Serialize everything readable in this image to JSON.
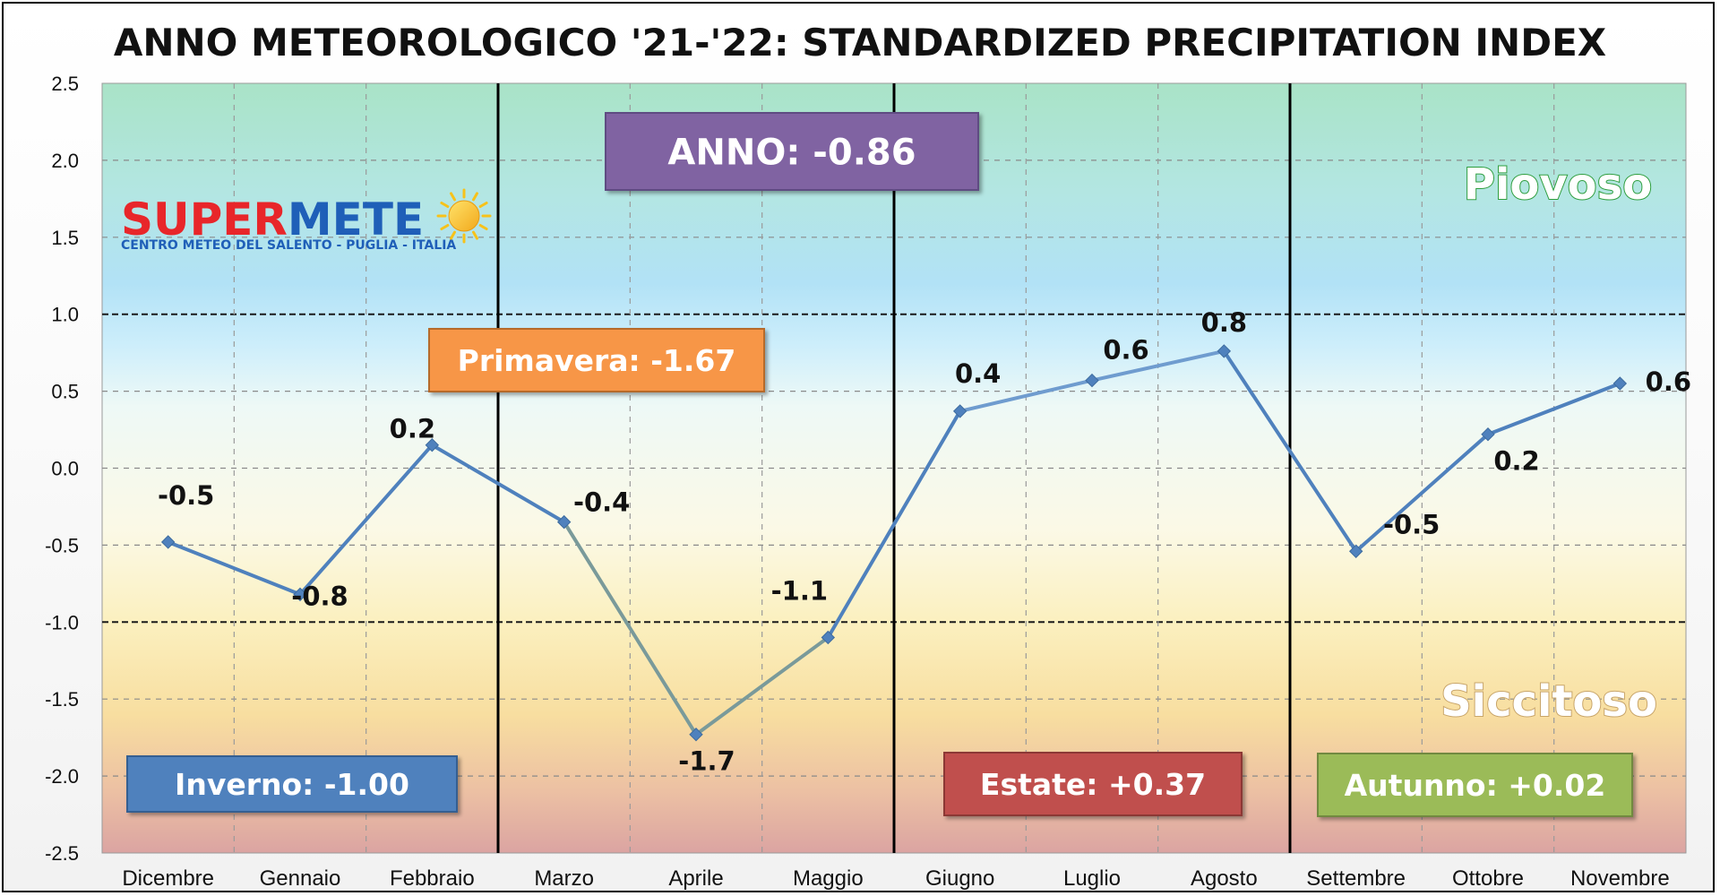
{
  "chart_data": {
    "type": "line",
    "title": "ANNO METEOROLOGICO '21-'22: STANDARDIZED PRECIPITATION INDEX",
    "categories": [
      "Dicembre",
      "Gennaio",
      "Febbraio",
      "Marzo",
      "Aprile",
      "Maggio",
      "Giugno",
      "Luglio",
      "Agosto",
      "Settembre",
      "Ottobre",
      "Novembre"
    ],
    "values": [
      -0.48,
      -0.82,
      0.15,
      -0.35,
      -1.73,
      -1.1,
      0.37,
      0.57,
      0.76,
      -0.54,
      0.22,
      0.55
    ],
    "data_labels": [
      "-0.5",
      "-0.8",
      "0.2",
      "-0.4",
      "-1.7",
      "-1.1",
      "0.4",
      "0.6",
      "0.8",
      "-0.5",
      "0.2",
      "0.6"
    ],
    "ylim": [
      -2.5,
      2.5
    ],
    "yticks": [
      "2.5",
      "2.0",
      "1.5",
      "1.0",
      "0.5",
      "0.0",
      "-0.5",
      "-1.0",
      "-1.5",
      "-2.0",
      "-2.5"
    ],
    "ytick_values": [
      2.5,
      2.0,
      1.5,
      1.0,
      0.5,
      0.0,
      -0.5,
      -1.0,
      -1.5,
      -2.0,
      -2.5
    ],
    "threshold_lines": [
      1.0,
      -1.0
    ],
    "season_dividers_after": [
      "Febbraio",
      "Maggio",
      "Agosto"
    ],
    "grid": true,
    "line_color": "#4f81bd",
    "zones": {
      "wet_label": "Piovoso",
      "dry_label": "Siccitoso",
      "wet_color": "#2e9e3e",
      "dry_color": "#c8a56a"
    },
    "annotations": [
      {
        "id": "anno",
        "text": "ANNO: -0.86",
        "color": "#8064a2",
        "border": "#5f4b82"
      },
      {
        "id": "primavera",
        "text": "Primavera: -1.67",
        "color": "#f79646",
        "border": "#b66a2a"
      },
      {
        "id": "inverno",
        "text": "Inverno: -1.00",
        "color": "#4f81bd",
        "border": "#365f91"
      },
      {
        "id": "estate",
        "text": "Estate: +0.37",
        "color": "#c0504d",
        "border": "#8c3836"
      },
      {
        "id": "autunno",
        "text": "Autunno: +0.02",
        "color": "#9bbb59",
        "border": "#71893f"
      }
    ]
  },
  "logo": {
    "name_part1": "SUPER",
    "name_part2": "METE",
    "subtitle": "CENTRO METEO DEL SALENTO - PUGLIA - ITALIA",
    "color_part1": "#e8262a",
    "color_part2": "#1f5fb8",
    "sun_color": "#f7c21a"
  }
}
